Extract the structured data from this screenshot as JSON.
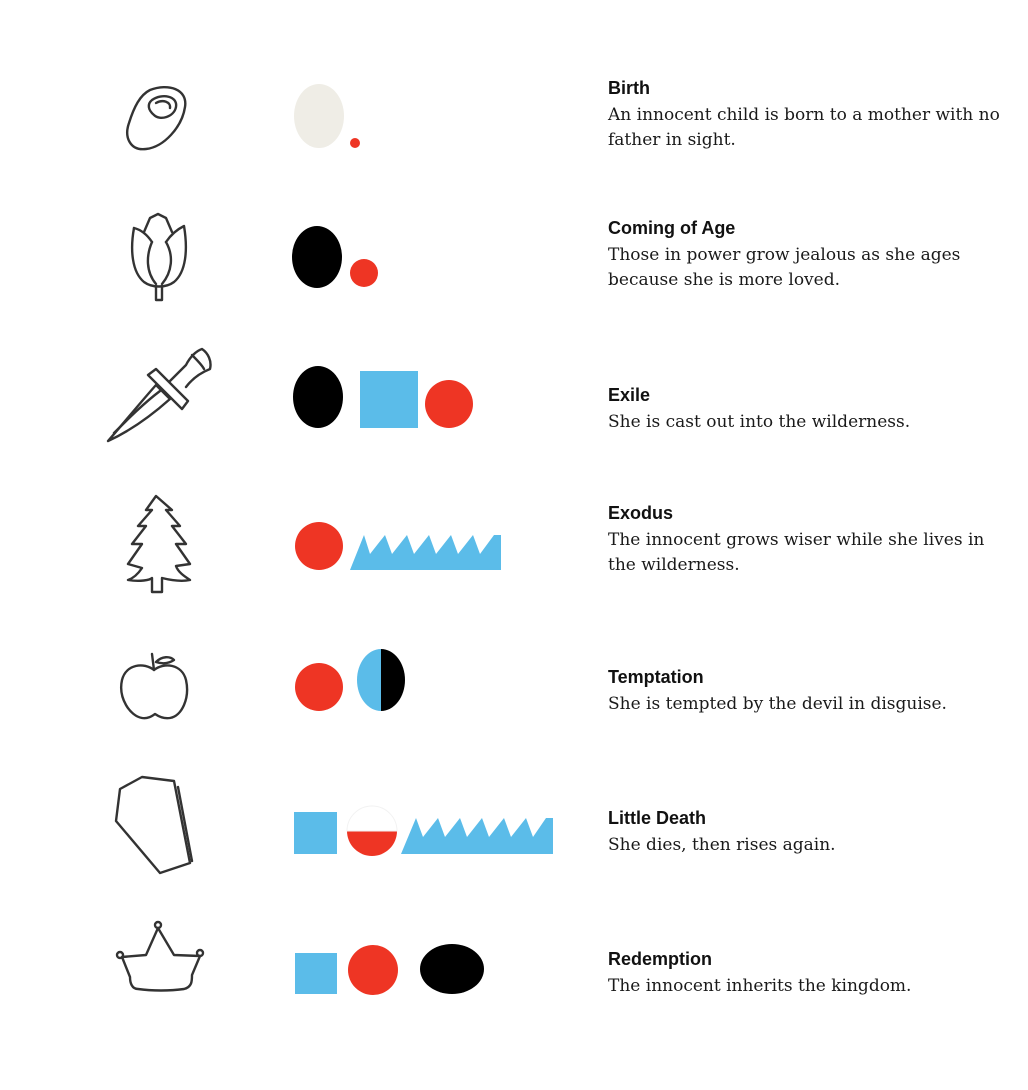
{
  "colors": {
    "red": "#ee3524",
    "blue": "#5bbce9",
    "black": "#000000",
    "cream": "#efede6",
    "sketch": "#333333"
  },
  "stages": [
    {
      "title": "Birth",
      "description": "An innocent child is born to a mother with no father in sight.",
      "icon": "egg-icon"
    },
    {
      "title": "Coming of Age",
      "description": "Those in power grow jealous as she ages because she is more loved.",
      "icon": "tulip-icon"
    },
    {
      "title": "Exile",
      "description": "She is cast out into the wilderness.",
      "icon": "dagger-icon"
    },
    {
      "title": "Exodus",
      "description": "The innocent grows wiser while she lives in the wilderness.",
      "icon": "pine-tree-icon"
    },
    {
      "title": "Temptation",
      "description": "She is tempted by the devil in disguise.",
      "icon": "apple-icon"
    },
    {
      "title": "Little Death",
      "description": "She dies, then rises again.",
      "icon": "coffin-icon"
    },
    {
      "title": "Redemption",
      "description": "The innocent inherits the kingdom.",
      "icon": "crown-icon"
    }
  ]
}
